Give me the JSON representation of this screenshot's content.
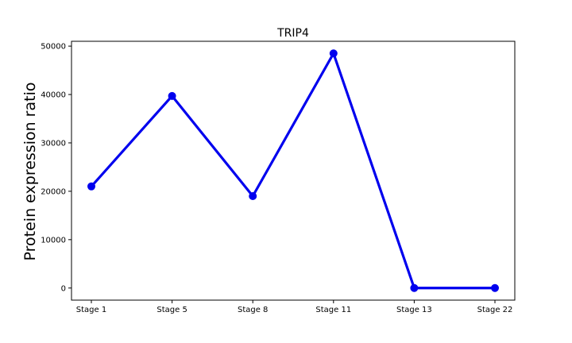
{
  "chart_data": {
    "type": "line",
    "title": "TRIP4",
    "xlabel": "",
    "ylabel": "Protein expression ratio",
    "categories": [
      "Stage 1",
      "Stage 5",
      "Stage 8",
      "Stage 11",
      "Stage 13",
      "Stage 22"
    ],
    "series": [
      {
        "values": [
          21000,
          39700,
          19000,
          48500,
          0,
          0
        ]
      }
    ],
    "ylim": [
      -2500,
      51000
    ],
    "yticks": [
      0,
      10000,
      20000,
      30000,
      40000,
      50000
    ],
    "ytick_labels": [
      "0",
      "10000",
      "20000",
      "30000",
      "40000",
      "50000"
    ],
    "line_color": "#0000ee",
    "grid": false,
    "legend": "none"
  }
}
